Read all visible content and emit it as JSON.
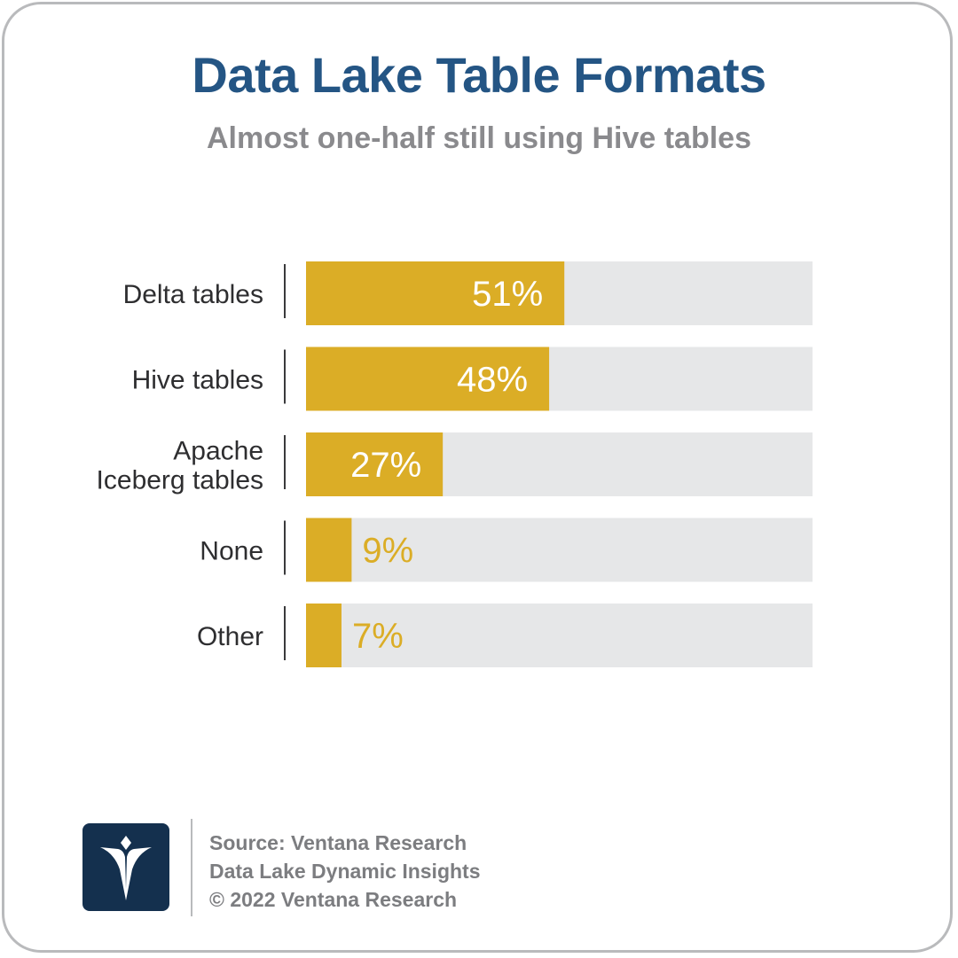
{
  "title": "Data Lake Table Formats",
  "subtitle": "Almost one-half still using Hive tables",
  "colors": {
    "bar": "#dbad26",
    "track": "#e6e7e8",
    "title": "#245584",
    "label_inside": "#ffffff",
    "label_outside": "#dbad26",
    "logo_bg": "#14304e"
  },
  "chart_data": {
    "type": "bar",
    "orientation": "horizontal",
    "categories": [
      "Delta tables",
      "Hive tables",
      "Apache Iceberg tables",
      "None",
      "Other"
    ],
    "category_lines": [
      [
        "Delta tables"
      ],
      [
        "Hive tables"
      ],
      [
        "Apache",
        "Iceberg tables"
      ],
      [
        "None"
      ],
      [
        "Other"
      ]
    ],
    "values": [
      51,
      48,
      27,
      9,
      7
    ],
    "value_labels": [
      "51%",
      "48%",
      "27%",
      "9%",
      "7%"
    ],
    "xlim": [
      0,
      100
    ],
    "unit": "%",
    "title": "Data Lake Table Formats",
    "subtitle": "Almost one-half still using Hive tables",
    "grid": false,
    "legend": "none"
  },
  "footer": {
    "logo_icon": "ventana-v-logo-icon",
    "source_line": "Source: Ventana Research",
    "study_line": "Data Lake Dynamic Insights",
    "copyright_line": "© 2022 Ventana Research"
  }
}
